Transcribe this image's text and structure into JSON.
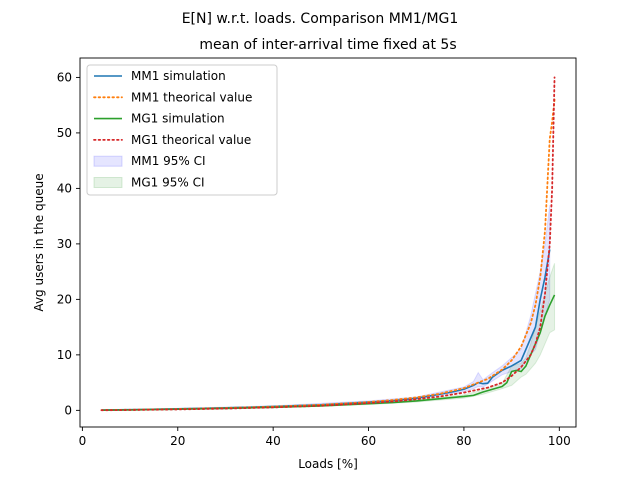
{
  "figure": {
    "suptitle": "E[N] w.r.t. loads. Comparison MM1/MG1",
    "title": "mean of inter-arrival time fixed at 5s"
  },
  "chart_data": {
    "type": "line",
    "xlabel": "Loads [%]",
    "ylabel": "Avg users in the queue",
    "xlim": [
      -0.5,
      103.5
    ],
    "ylim": [
      -3,
      63.5
    ],
    "xticks": [
      0,
      20,
      40,
      60,
      80,
      100
    ],
    "yticks": [
      0,
      10,
      20,
      30,
      40,
      50,
      60
    ],
    "xtick_labels": [
      "0",
      "20",
      "40",
      "60",
      "80",
      "100"
    ],
    "ytick_labels": [
      "0",
      "10",
      "20",
      "30",
      "40",
      "50",
      "60"
    ],
    "legend": {
      "position": "upper-left",
      "entries": [
        {
          "label": "MM1 simulation",
          "kind": "line",
          "color": "#1f77b4"
        },
        {
          "label": "MM1 theorical value",
          "kind": "dotted",
          "color": "#ff7f0e"
        },
        {
          "label": "MG1 simulation",
          "kind": "line",
          "color": "#2ca02c"
        },
        {
          "label": "MG1 theorical value",
          "kind": "dotted",
          "color": "#d62728"
        },
        {
          "label": "MM1 95% CI",
          "kind": "patch",
          "color": "#0000ff"
        },
        {
          "label": "MG1 95% CI",
          "kind": "patch",
          "color": "#008000"
        }
      ]
    },
    "series": [
      {
        "name": "MM1 simulation",
        "style": "solid",
        "color": "#1f77b4",
        "x": [
          4,
          10,
          20,
          30,
          40,
          50,
          60,
          65,
          70,
          75,
          78,
          80,
          82,
          83,
          84,
          85,
          86,
          88,
          90,
          92,
          94,
          95,
          96,
          97,
          98
        ],
        "y": [
          0.05,
          0.12,
          0.28,
          0.45,
          0.7,
          1.0,
          1.5,
          1.75,
          2.2,
          2.9,
          3.4,
          3.8,
          4.5,
          5.0,
          4.8,
          4.9,
          6.0,
          7.2,
          8.0,
          9.0,
          13.0,
          15.0,
          20.0,
          24.0,
          29.0
        ]
      },
      {
        "name": "MM1 theorical value",
        "style": "dotted",
        "color": "#ff7f0e",
        "x": [
          4,
          10,
          20,
          30,
          40,
          50,
          60,
          65,
          70,
          75,
          80,
          85,
          88,
          90,
          92,
          94,
          95,
          96,
          97,
          98,
          98.5,
          99
        ],
        "y": [
          0.04,
          0.11,
          0.25,
          0.43,
          0.67,
          1.0,
          1.5,
          1.86,
          2.33,
          3.0,
          4.0,
          5.67,
          7.33,
          9.0,
          11.5,
          15.67,
          19.0,
          24.0,
          32.33,
          49.0,
          52.0,
          56.0
        ]
      },
      {
        "name": "MG1 simulation",
        "style": "solid",
        "color": "#2ca02c",
        "x": [
          4,
          10,
          20,
          30,
          40,
          50,
          60,
          65,
          70,
          75,
          80,
          82,
          84,
          86,
          88,
          89,
          90,
          91,
          92,
          93,
          94,
          95,
          96,
          97,
          98,
          99
        ],
        "y": [
          0.03,
          0.08,
          0.2,
          0.35,
          0.55,
          0.8,
          1.2,
          1.4,
          1.7,
          2.1,
          2.5,
          2.7,
          3.3,
          3.8,
          4.3,
          5.0,
          7.0,
          7.2,
          7.0,
          8.0,
          10.0,
          12.0,
          14.0,
          17.0,
          19.0,
          20.8
        ]
      },
      {
        "name": "MG1 theorical value",
        "style": "dotted",
        "color": "#d62728",
        "x": [
          4,
          10,
          20,
          30,
          40,
          50,
          60,
          65,
          70,
          75,
          80,
          85,
          88,
          90,
          92,
          94,
          95,
          96,
          97,
          98,
          98.5,
          99
        ],
        "y": [
          0.02,
          0.06,
          0.17,
          0.32,
          0.53,
          0.83,
          1.3,
          1.6,
          2.0,
          2.5,
          3.2,
          4.1,
          5.0,
          6.2,
          7.8,
          10.0,
          12.0,
          15.0,
          21.0,
          30.0,
          40.0,
          60.0
        ]
      }
    ],
    "bands": [
      {
        "name": "MM1 95% CI",
        "color": "#0000ff",
        "x": [
          4,
          20,
          40,
          60,
          70,
          80,
          82,
          83,
          84,
          86,
          88,
          90,
          92,
          94,
          95,
          96,
          97,
          98
        ],
        "lower": [
          0.0,
          0.2,
          0.6,
          1.3,
          2.0,
          3.4,
          3.9,
          4.3,
          4.2,
          5.3,
          6.4,
          7.0,
          7.5,
          10.0,
          11.0,
          14.0,
          17.0,
          20.0
        ],
        "upper": [
          0.1,
          0.36,
          0.8,
          1.7,
          2.4,
          4.2,
          5.2,
          6.8,
          5.5,
          6.8,
          8.0,
          9.5,
          11.0,
          17.0,
          21.0,
          25.0,
          30.0,
          37.0
        ]
      },
      {
        "name": "MG1 95% CI",
        "color": "#008000",
        "x": [
          4,
          20,
          40,
          60,
          70,
          80,
          84,
          88,
          90,
          92,
          93,
          94,
          95,
          96,
          97,
          98,
          99
        ],
        "lower": [
          0.0,
          0.15,
          0.45,
          1.05,
          1.5,
          2.2,
          2.9,
          3.9,
          4.5,
          6.0,
          6.5,
          7.5,
          8.5,
          10.0,
          12.0,
          14.0,
          14.5
        ],
        "upper": [
          0.06,
          0.25,
          0.65,
          1.35,
          1.9,
          2.8,
          3.7,
          4.8,
          8.0,
          8.5,
          9.5,
          12.0,
          15.0,
          18.0,
          21.0,
          24.0,
          26.5
        ]
      }
    ]
  }
}
